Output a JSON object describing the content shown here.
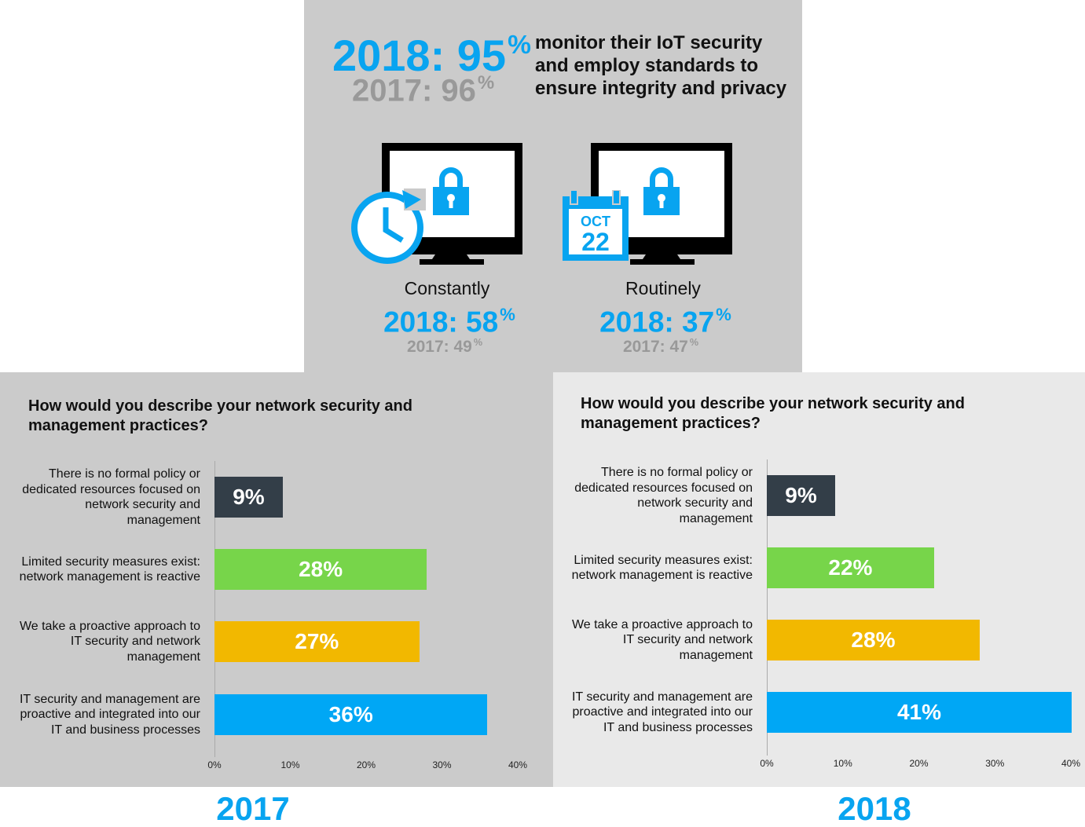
{
  "colors": {
    "accent_blue": "#08a4f0",
    "muted_gray": "#999999",
    "dark": "#333e48",
    "green": "#77d54a",
    "yellow": "#f2b800",
    "blue": "#00a7f5"
  },
  "top": {
    "main_stat": "2018: 95",
    "prev_stat": "2017: 96",
    "pct": "%",
    "description": "monitor their IoT security and employ standards to ensure integrity and privacy",
    "constantly": {
      "label": "Constantly",
      "main": "2018: 58",
      "prev": "2017: 49",
      "icon": "clock-refresh-icon"
    },
    "routinely": {
      "label": "Routinely",
      "main": "2018: 37",
      "prev": "2017: 47",
      "icon": "calendar-icon",
      "cal_month": "OCT",
      "cal_day": "22"
    }
  },
  "chart_data": [
    {
      "type": "bar",
      "orientation": "horizontal",
      "title": "How would you describe your network security and management practices?",
      "year": "2017",
      "categories": [
        "There is no formal policy or dedicated resources focused on network security and management",
        "Limited security measures exist: network management is reactive",
        "We take a proactive approach to IT security and network management",
        "IT security and management are proactive and integrated into our IT and business processes"
      ],
      "values": [
        9,
        28,
        27,
        36
      ],
      "data_labels": [
        "9%",
        "28%",
        "27%",
        "36%"
      ],
      "bar_colors": [
        "#333e48",
        "#77d54a",
        "#f2b800",
        "#00a7f5"
      ],
      "xlim": [
        0,
        40
      ],
      "xticks": [
        "0%",
        "10%",
        "20%",
        "30%",
        "40%"
      ],
      "grid": false
    },
    {
      "type": "bar",
      "orientation": "horizontal",
      "title": "How would you describe your network security and management practices?",
      "year": "2018",
      "categories": [
        "There is no formal policy or dedicated resources focused on network security and management",
        "Limited security measures exist: network management is reactive",
        "We take a proactive approach to IT security and network management",
        "IT security and management are proactive and integrated into our IT and business processes"
      ],
      "values": [
        9,
        22,
        28,
        41
      ],
      "data_labels": [
        "9%",
        "22%",
        "28%",
        "41%"
      ],
      "bar_colors": [
        "#333e48",
        "#77d54a",
        "#f2b800",
        "#00a7f5"
      ],
      "xlim": [
        0,
        40
      ],
      "xticks": [
        "0%",
        "10%",
        "20%",
        "30%",
        "40%"
      ],
      "grid": false
    }
  ]
}
